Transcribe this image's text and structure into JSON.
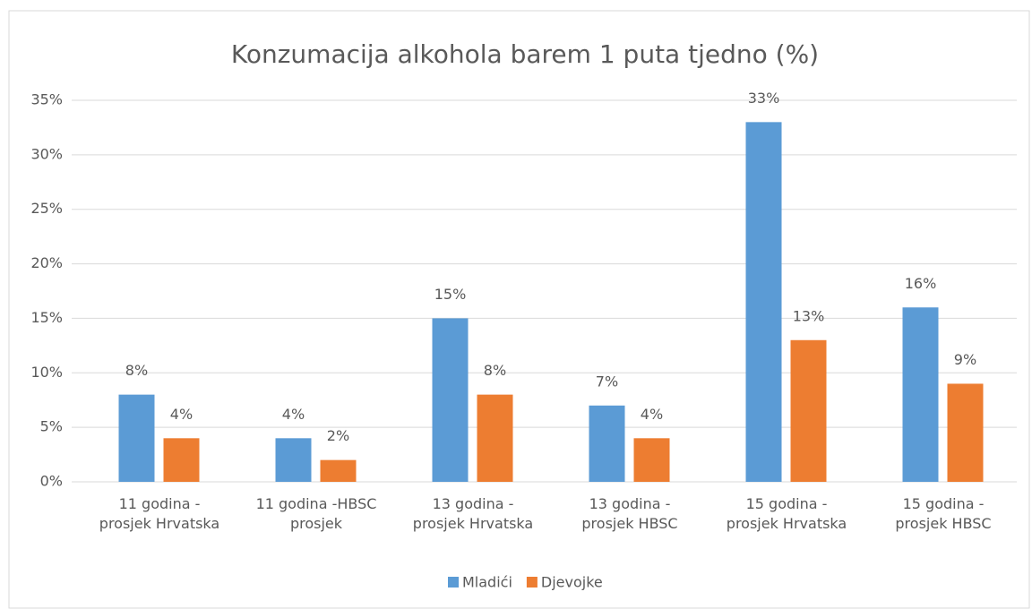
{
  "chart_data": {
    "type": "bar",
    "title": "Konzumacija alkohola barem 1 puta tjedno (%)",
    "categories": [
      "11 godina -\nprosjek Hrvatska",
      "11 godina -HBSC\nprosjek",
      "13 godina -\nprosjek Hrvatska",
      "13 godina -\nprosjek HBSC",
      "15 godina -\nprosjek Hrvatska",
      "15 godina -\nprosjek HBSC"
    ],
    "series": [
      {
        "name": "Mladići",
        "color": "#5b9bd5",
        "values": [
          8,
          4,
          15,
          7,
          33,
          16
        ],
        "value_labels": [
          "8%",
          "4%",
          "15%",
          "7%",
          "33%",
          "16%"
        ]
      },
      {
        "name": "Djevojke",
        "color": "#ed7d31",
        "values": [
          4,
          2,
          8,
          4,
          13,
          9
        ],
        "value_labels": [
          "4%",
          "2%",
          "8%",
          "4%",
          "13%",
          "9%"
        ]
      }
    ],
    "ylim": [
      0,
      35
    ],
    "yticks": [
      {
        "value": 0,
        "label": "0%"
      },
      {
        "value": 5,
        "label": "5%"
      },
      {
        "value": 10,
        "label": "10%"
      },
      {
        "value": 15,
        "label": "15%"
      },
      {
        "value": 20,
        "label": "20%"
      },
      {
        "value": 25,
        "label": "25%"
      },
      {
        "value": 30,
        "label": "30%"
      },
      {
        "value": 35,
        "label": "35%"
      }
    ],
    "grid": true,
    "legend": "bottom"
  }
}
